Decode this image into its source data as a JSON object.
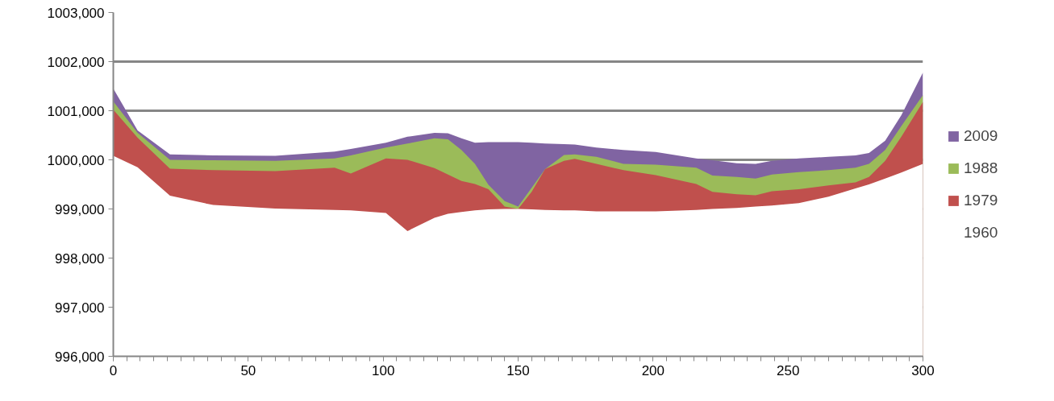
{
  "chart_data": {
    "type": "area",
    "x": [
      0,
      9,
      21,
      37,
      60,
      82,
      88,
      101,
      109,
      119,
      124,
      129,
      134,
      139,
      145,
      150,
      155,
      160,
      167,
      171,
      179,
      189,
      201,
      216,
      222,
      231,
      238,
      244,
      254,
      265,
      275,
      280,
      286,
      292,
      300
    ],
    "series": [
      {
        "name": "2009",
        "color": "#8064a2",
        "values": [
          1001450,
          1000600,
          1000110,
          1000090,
          1000080,
          1000170,
          1000220,
          1000350,
          1000470,
          1000550,
          1000540,
          1000440,
          1000350,
          1000360,
          1000360,
          1000360,
          1000350,
          1000330,
          1000320,
          1000310,
          1000250,
          1000200,
          1000160,
          1000030,
          999990,
          999930,
          999920,
          999980,
          1000030,
          1000060,
          1000090,
          1000140,
          1000390,
          1000910,
          1001780
        ]
      },
      {
        "name": "1988",
        "color": "#9bbb59",
        "values": [
          1001190,
          1000550,
          1000000,
          999990,
          999980,
          1000030,
          1000090,
          1000250,
          1000330,
          1000440,
          1000420,
          1000200,
          999920,
          999490,
          999160,
          999050,
          999430,
          999810,
          1000100,
          1000110,
          1000060,
          999920,
          999900,
          999840,
          999680,
          999650,
          999620,
          999700,
          999750,
          999790,
          999840,
          999920,
          1000200,
          1000690,
          1001320
        ]
      },
      {
        "name": "1979",
        "color": "#c0504d",
        "values": [
          1001020,
          1000450,
          999820,
          999790,
          999770,
          999840,
          999720,
          1000030,
          1000000,
          999830,
          999700,
          999570,
          999510,
          999400,
          999050,
          999000,
          999350,
          999810,
          999980,
          1000020,
          999920,
          999790,
          999690,
          999510,
          999350,
          999300,
          999280,
          999360,
          999400,
          999480,
          999540,
          999650,
          999980,
          1000470,
          1001180
        ]
      },
      {
        "name": "1960",
        "color": "#ffffff",
        "values": [
          1000080,
          999850,
          999270,
          999080,
          999010,
          998980,
          998970,
          998920,
          998550,
          998820,
          998900,
          998940,
          998970,
          998990,
          999000,
          999000,
          998990,
          998980,
          998970,
          998970,
          998950,
          998950,
          998950,
          998980,
          999000,
          999020,
          999050,
          999070,
          999120,
          999250,
          999420,
          999500,
          999620,
          999740,
          999920
        ]
      }
    ],
    "xlim": [
      0,
      300
    ],
    "xticks": [
      0,
      50,
      100,
      150,
      200,
      250,
      300
    ],
    "ylim": [
      996000,
      1003000
    ],
    "yticks": [
      {
        "value": 996000,
        "label": "996,000"
      },
      {
        "value": 997000,
        "label": "997,000"
      },
      {
        "value": 998000,
        "label": "998,000"
      },
      {
        "value": 999000,
        "label": "999,000"
      },
      {
        "value": 1000000,
        "label": "1000,000"
      },
      {
        "value": 1001000,
        "label": "1001,000"
      },
      {
        "value": 1002000,
        "label": "1002,000"
      },
      {
        "value": 1003000,
        "label": "1003,000"
      }
    ],
    "grid": "y",
    "legend": "right"
  }
}
